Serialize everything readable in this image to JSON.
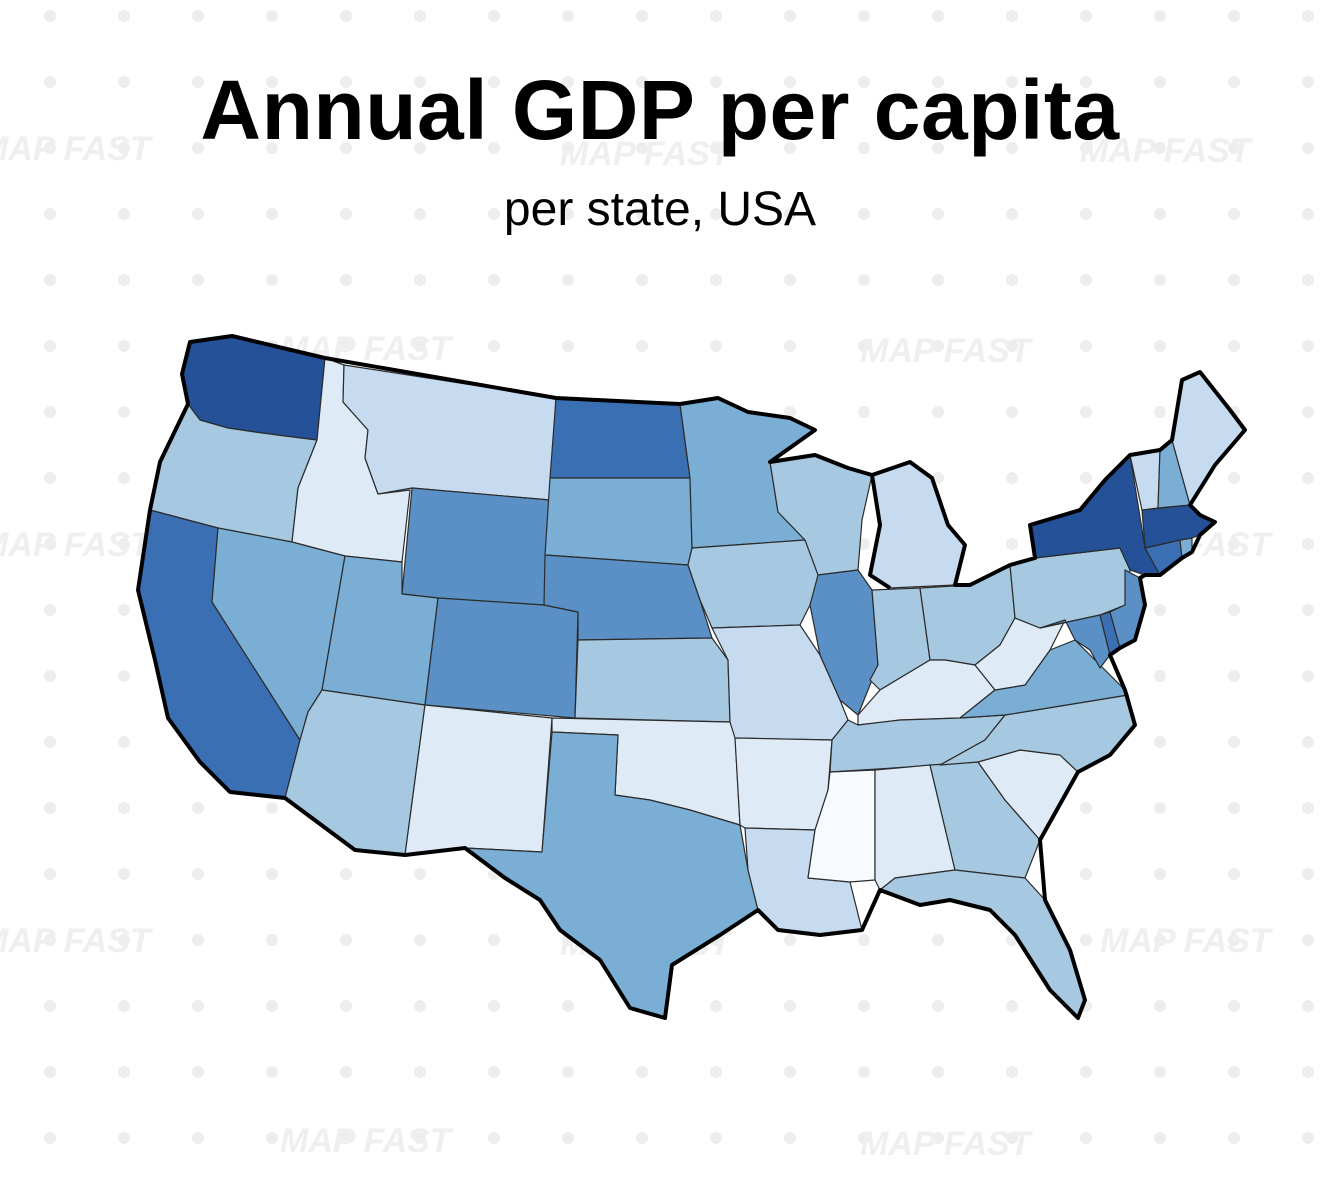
{
  "title": "Annual GDP per capita",
  "subtitle": "per state, USA",
  "watermark": "MAP FAST",
  "palette": [
    "#f7fbff",
    "#deebf7",
    "#c6dbef",
    "#a6c8e0",
    "#7aaed5",
    "#5a90c6",
    "#3a70b3",
    "#245198"
  ],
  "states": [
    {
      "id": "WA",
      "level": 7
    },
    {
      "id": "OR",
      "level": 3
    },
    {
      "id": "CA",
      "level": 6
    },
    {
      "id": "ID",
      "level": 1
    },
    {
      "id": "NV",
      "level": 4
    },
    {
      "id": "MT",
      "level": 2
    },
    {
      "id": "WY",
      "level": 5
    },
    {
      "id": "UT",
      "level": 4
    },
    {
      "id": "AZ",
      "level": 3
    },
    {
      "id": "CO",
      "level": 5
    },
    {
      "id": "NM",
      "level": 1
    },
    {
      "id": "ND",
      "level": 6
    },
    {
      "id": "SD",
      "level": 4
    },
    {
      "id": "NE",
      "level": 5
    },
    {
      "id": "KS",
      "level": 3
    },
    {
      "id": "OK",
      "level": 1
    },
    {
      "id": "TX",
      "level": 4
    },
    {
      "id": "MN",
      "level": 4
    },
    {
      "id": "IA",
      "level": 3
    },
    {
      "id": "MO",
      "level": 2
    },
    {
      "id": "AR",
      "level": 1
    },
    {
      "id": "LA",
      "level": 2
    },
    {
      "id": "WI",
      "level": 3
    },
    {
      "id": "IL",
      "level": 5
    },
    {
      "id": "MI",
      "level": 2
    },
    {
      "id": "IN",
      "level": 3
    },
    {
      "id": "OH",
      "level": 3
    },
    {
      "id": "KY",
      "level": 1
    },
    {
      "id": "TN",
      "level": 3
    },
    {
      "id": "MS",
      "level": 0
    },
    {
      "id": "AL",
      "level": 1
    },
    {
      "id": "GA",
      "level": 3
    },
    {
      "id": "FL",
      "level": 3
    },
    {
      "id": "SC",
      "level": 1
    },
    {
      "id": "NC",
      "level": 3
    },
    {
      "id": "VA",
      "level": 4
    },
    {
      "id": "WV",
      "level": 1
    },
    {
      "id": "PA",
      "level": 3
    },
    {
      "id": "NY",
      "level": 7
    },
    {
      "id": "NJ",
      "level": 5
    },
    {
      "id": "MD",
      "level": 5
    },
    {
      "id": "DE",
      "level": 6
    },
    {
      "id": "CT",
      "level": 6
    },
    {
      "id": "MA",
      "level": 7
    },
    {
      "id": "RI",
      "level": 4
    },
    {
      "id": "VT",
      "level": 2
    },
    {
      "id": "NH",
      "level": 4
    },
    {
      "id": "ME",
      "level": 2
    }
  ]
}
